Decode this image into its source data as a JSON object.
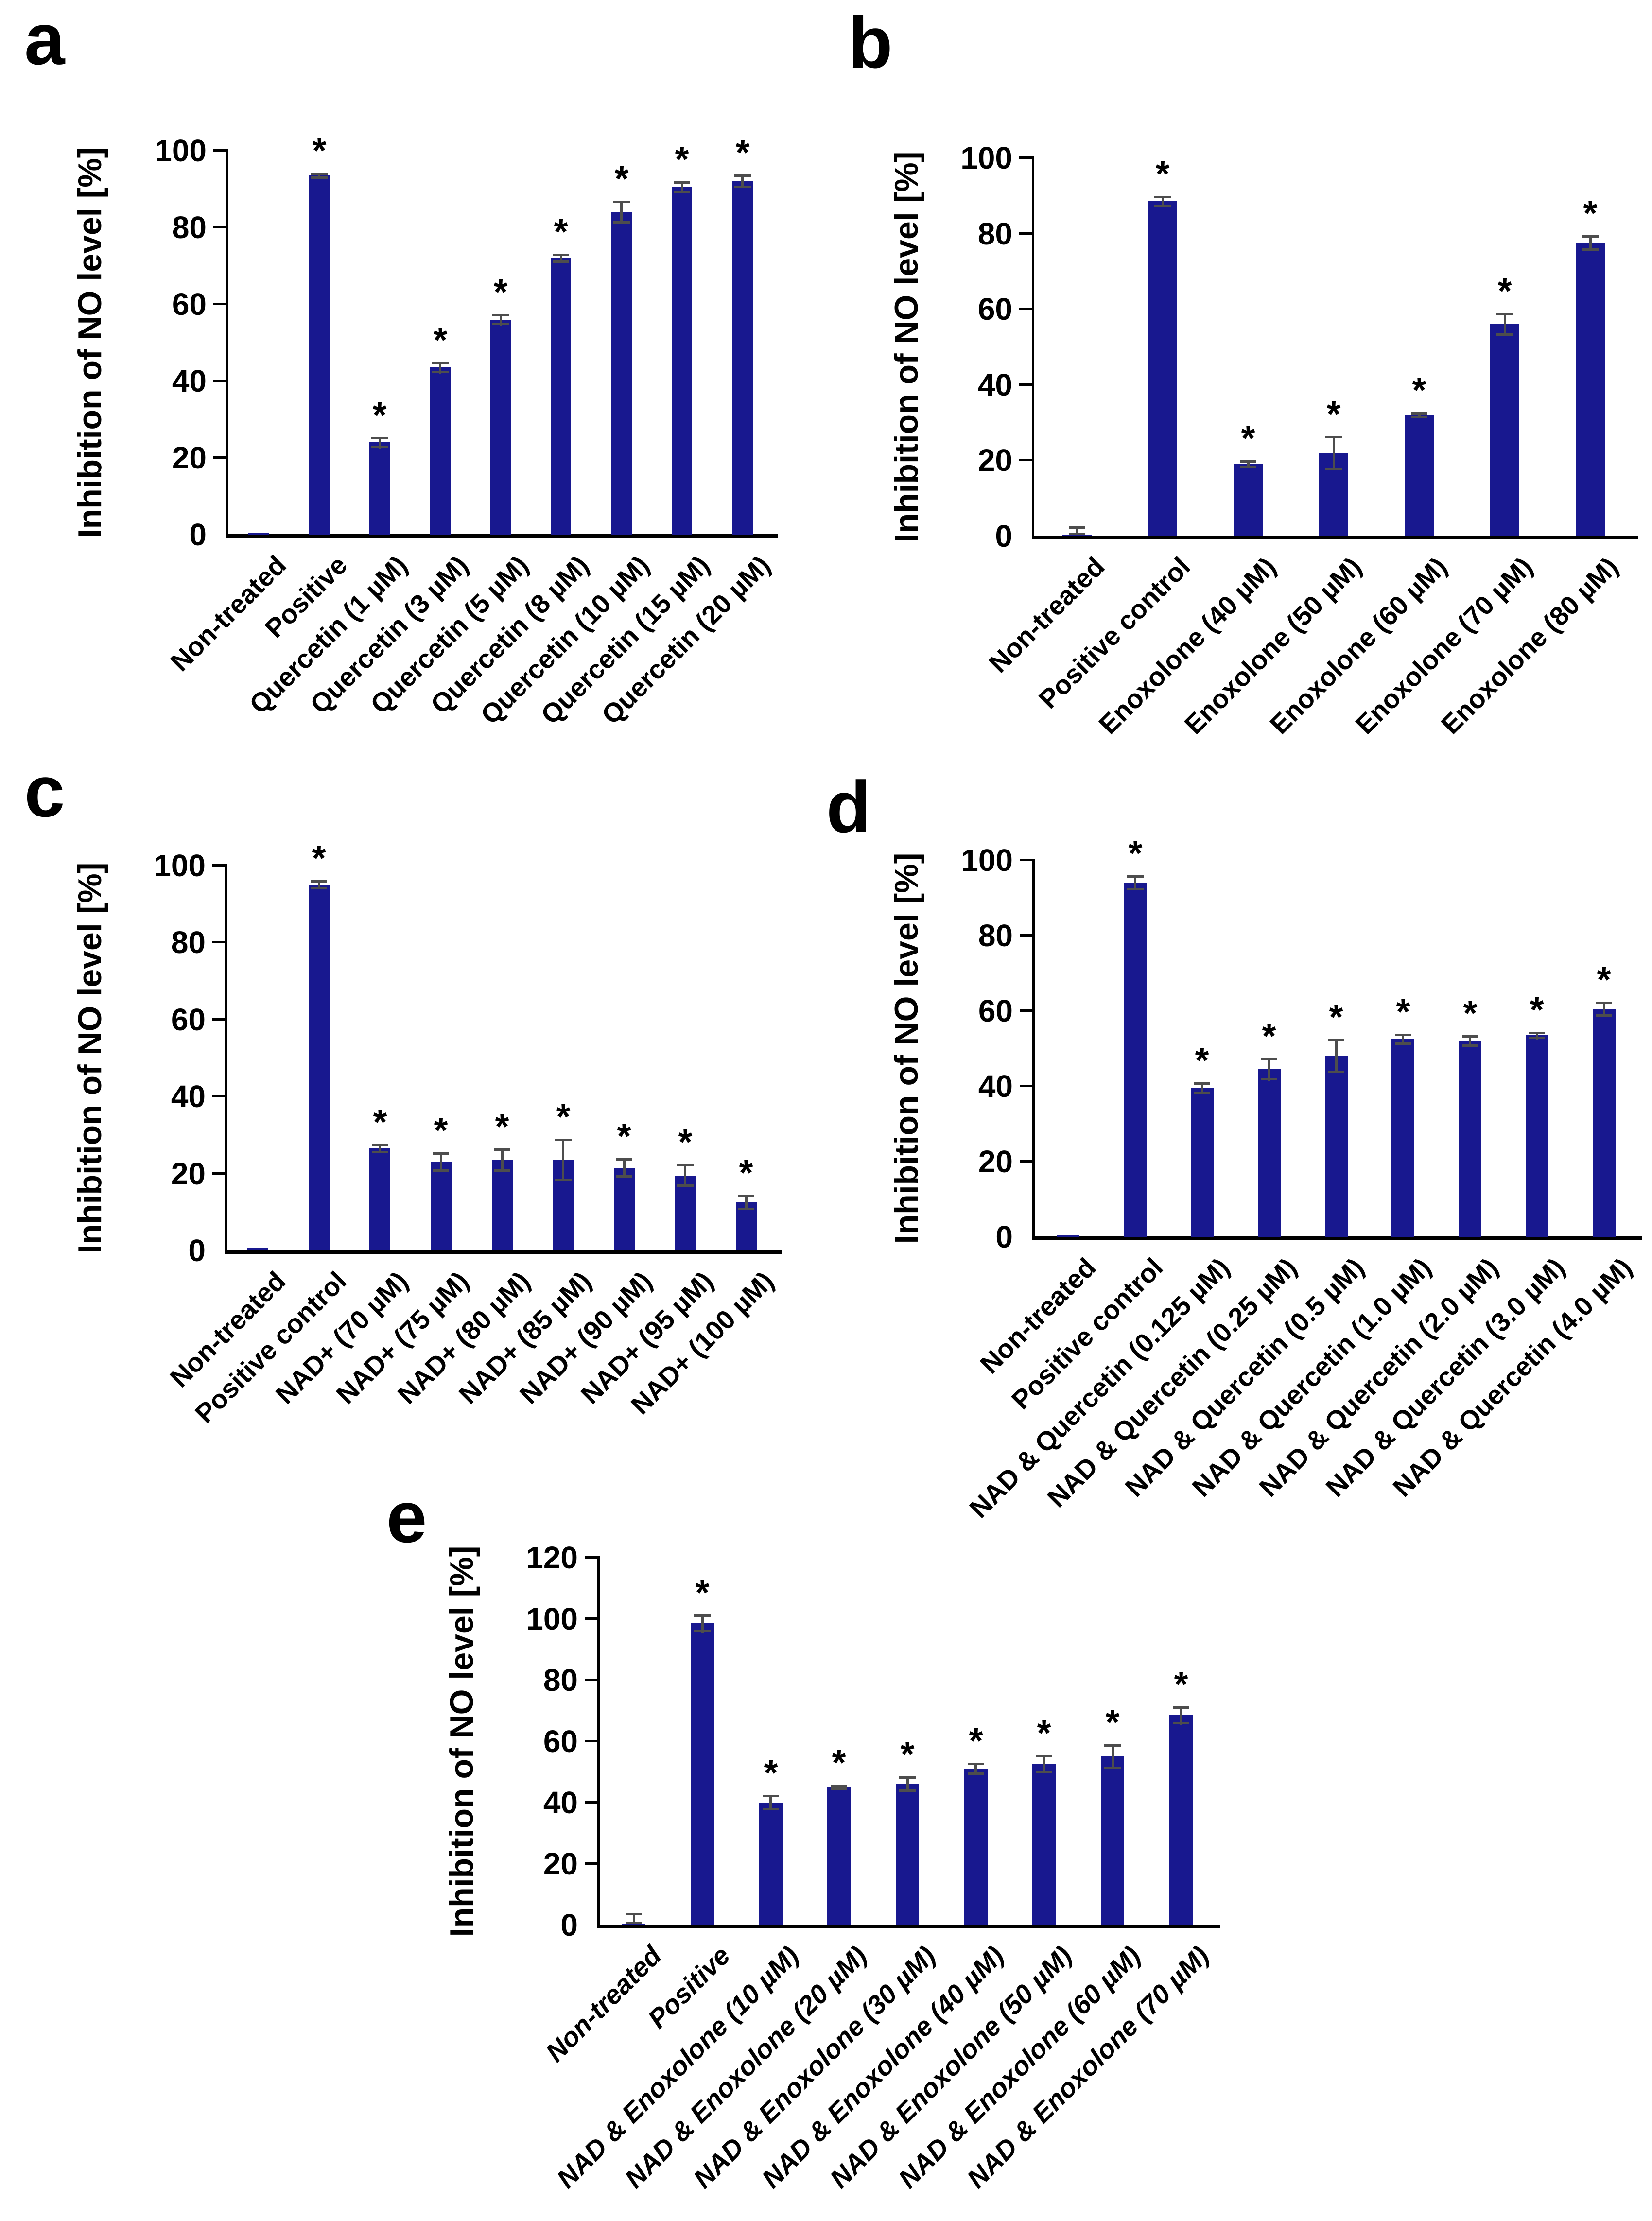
{
  "styles": {
    "bar_color": "#18188f",
    "error_bar_color": "#4d4d4d",
    "axis_color": "#000000"
  },
  "significance_marker": "*",
  "chart_data": [
    {
      "panel": "a",
      "type": "bar",
      "ylabel": "Inhibition of NO level [%]",
      "ylim": [
        0,
        100
      ],
      "yticks": [
        0,
        20,
        40,
        60,
        80,
        100
      ],
      "grid": false,
      "legend": "none",
      "categories": [
        "Non-treated",
        "Positive",
        "Quercetin (1 µM)",
        "Quercetin (3 µM)",
        "Quercetin (5 µM)",
        "Quercetin (8 µM)",
        "Quercetin (10 µM)",
        "Quercetin (15 µM)",
        "Quercetin (20 µM)"
      ],
      "values": [
        0.4,
        93.5,
        24,
        43.5,
        56,
        72,
        84,
        90.5,
        92
      ],
      "errors": [
        0,
        0.8,
        1.5,
        1.5,
        1.5,
        1.2,
        3,
        1.5,
        1.8
      ],
      "significant": [
        false,
        true,
        true,
        true,
        true,
        true,
        true,
        true,
        true
      ]
    },
    {
      "panel": "b",
      "type": "bar",
      "ylabel": "Inhibition of NO level [%]",
      "ylim": [
        0,
        100
      ],
      "yticks": [
        0,
        20,
        40,
        60,
        80,
        100
      ],
      "grid": false,
      "legend": "none",
      "categories": [
        "Non-treated",
        "Positive control",
        "Enoxolone (40 µM)",
        "Enoxolone (50 µM)",
        "Enoxolone (60 µM)",
        "Enoxolone (70 µM)",
        "Enoxolone (80 µM)"
      ],
      "values": [
        0.4,
        88.5,
        19,
        22,
        32,
        56,
        77.5
      ],
      "errors": [
        2.2,
        1.5,
        1,
        4.5,
        0.8,
        3,
        2
      ],
      "significant": [
        false,
        true,
        true,
        true,
        true,
        true,
        true
      ]
    },
    {
      "panel": "c",
      "type": "bar",
      "ylabel": "Inhibition of NO level [%]",
      "ylim": [
        0,
        100
      ],
      "yticks": [
        0,
        20,
        40,
        60,
        80,
        100
      ],
      "grid": false,
      "legend": "none",
      "categories": [
        "Non-treated",
        "Positive control",
        "NAD+ (70 µM)",
        "NAD+ (75 µM)",
        "NAD+ (80 µM)",
        "NAD+ (85 µM)",
        "NAD+ (90 µM)",
        "NAD+ (95 µM)",
        "NAD+ (100 µM)"
      ],
      "values": [
        0.7,
        95,
        26.5,
        23,
        23.5,
        23.5,
        21.5,
        19.5,
        12.5
      ],
      "errors": [
        0,
        1.2,
        1.2,
        2.5,
        3,
        5.5,
        2.5,
        3,
        2
      ],
      "significant": [
        false,
        true,
        true,
        true,
        true,
        true,
        true,
        true,
        true
      ]
    },
    {
      "panel": "d",
      "type": "bar",
      "ylabel": "Inhibition of NO level [%]",
      "ylim": [
        0,
        100
      ],
      "yticks": [
        0,
        20,
        40,
        60,
        80,
        100
      ],
      "grid": false,
      "legend": "none",
      "categories": [
        "Non-treated",
        "Positive control",
        "NAD & Quercetin (0.125 µM)",
        "NAD & Quercetin (0.25 µM)",
        "NAD & Quercetin (0.5 µM)",
        "NAD & Quercetin (1.0 µM)",
        "NAD & Quercetin (2.0 µM)",
        "NAD & Quercetin (3.0 µM)",
        "NAD & Quercetin (4.0 µM)"
      ],
      "values": [
        0.5,
        94,
        39.5,
        44.5,
        48,
        52.5,
        52,
        53.5,
        60.5
      ],
      "errors": [
        0,
        2,
        1.5,
        3,
        4.5,
        1.5,
        1.5,
        1,
        2
      ],
      "significant": [
        false,
        true,
        true,
        true,
        true,
        true,
        true,
        true,
        true
      ]
    },
    {
      "panel": "e",
      "type": "bar",
      "ylabel": "Inhibition of NO level [%]",
      "ylim": [
        0,
        120
      ],
      "yticks": [
        0,
        20,
        40,
        60,
        80,
        100,
        120
      ],
      "grid": false,
      "legend": "none",
      "categories": [
        "Non-treated",
        "Positive",
        "NAD & Enoxolone (10 µM)",
        "NAD & Enoxolone (20 µM)",
        "NAD & Enoxolone (30 µM)",
        "NAD & Enoxolone (40 µM)",
        "NAD & Enoxolone (50 µM)",
        "NAD & Enoxolone (60 µM)",
        "NAD & Enoxolone (70 µM)"
      ],
      "values": [
        0.4,
        98.5,
        40,
        45,
        46,
        51,
        52.5,
        55,
        68.5
      ],
      "errors": [
        3.5,
        3,
        2.5,
        0.8,
        2.5,
        2,
        3,
        4,
        3
      ],
      "significant": [
        false,
        true,
        true,
        true,
        true,
        true,
        true,
        true,
        true
      ]
    }
  ]
}
